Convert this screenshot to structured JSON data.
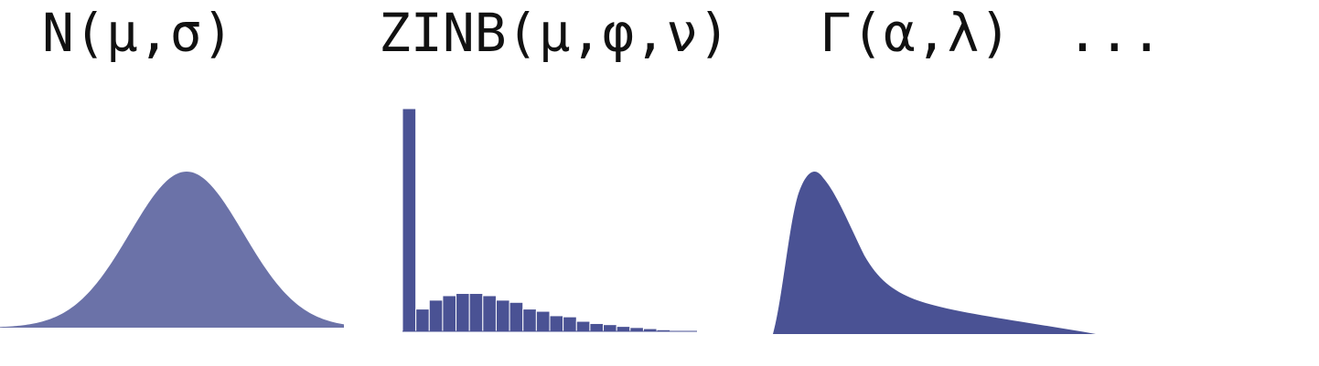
{
  "labels": {
    "normal": "N(μ,σ)",
    "zinb": "ZINB(μ,φ,ν)",
    "gamma": "Γ(α,λ)",
    "more": "..."
  },
  "colors": {
    "normal_fill": "#6b72a8",
    "zinb_fill": "#4a5294",
    "gamma_fill": "#4a5294",
    "bar_edge": "#ffffff",
    "text": "#111111"
  },
  "distributions": {
    "zinb_relative_heights": [
      1.0,
      0.1,
      0.14,
      0.16,
      0.17,
      0.17,
      0.16,
      0.14,
      0.13,
      0.1,
      0.09,
      0.07,
      0.065,
      0.045,
      0.035,
      0.03,
      0.022,
      0.017,
      0.012,
      0.007,
      0.004,
      0.003
    ]
  }
}
